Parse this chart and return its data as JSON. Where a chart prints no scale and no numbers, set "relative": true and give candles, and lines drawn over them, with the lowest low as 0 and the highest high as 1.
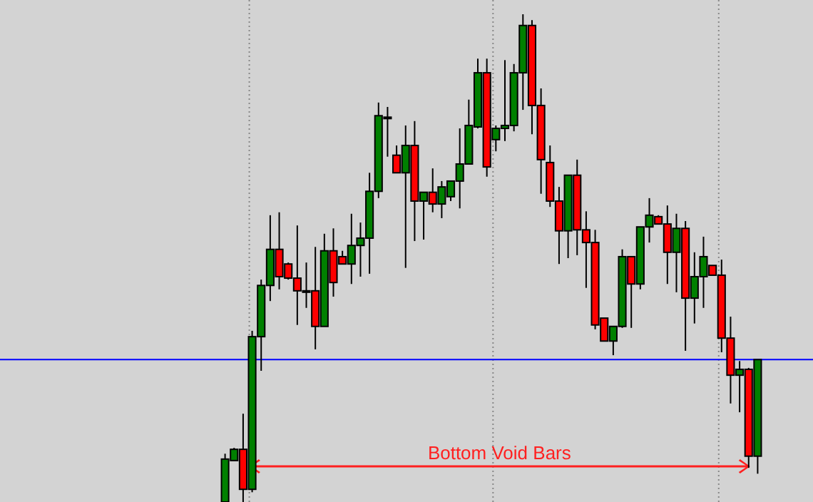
{
  "chart_data": {
    "type": "candlestick",
    "relative": true,
    "categories": [
      null,
      null,
      null,
      null,
      null,
      null,
      null,
      null,
      null,
      null,
      null,
      null,
      null,
      null,
      null,
      null,
      null,
      null,
      null,
      null,
      null,
      null,
      null,
      null,
      null,
      null,
      null,
      null,
      null,
      null,
      null,
      null,
      null,
      null,
      null,
      null,
      null,
      null,
      null,
      null,
      null,
      null,
      null,
      null,
      null,
      null,
      null,
      null,
      null,
      null,
      null,
      null,
      null,
      null,
      null,
      null,
      null,
      null,
      null,
      null
    ],
    "ohlc": [
      [
        0,
        0.099,
        0,
        0.088
      ],
      [
        0.085,
        0.111,
        0.085,
        0.108
      ],
      [
        0.108,
        0.181,
        0,
        0.026
      ],
      [
        0.026,
        0.351,
        0.02,
        0.339
      ],
      [
        0.339,
        0.456,
        0.269,
        0.444
      ],
      [
        0.444,
        0.588,
        0.412,
        0.518
      ],
      [
        0.518,
        0.594,
        0.436,
        0.462
      ],
      [
        0.488,
        0.491,
        0.456,
        0.459
      ],
      [
        0.459,
        0.567,
        0.363,
        0.433
      ],
      [
        0.433,
        0.491,
        0.398,
        0.433
      ],
      [
        0.433,
        0.523,
        0.313,
        0.36
      ],
      [
        0.36,
        0.55,
        0.36,
        0.515
      ],
      [
        0.515,
        0.561,
        0.421,
        0.45
      ],
      [
        0.503,
        0.515,
        0.488,
        0.488
      ],
      [
        0.488,
        0.591,
        0.447,
        0.526
      ],
      [
        0.526,
        0.573,
        0.462,
        0.541
      ],
      [
        0.541,
        0.675,
        0.468,
        0.637
      ],
      [
        0.637,
        0.819,
        0.623,
        0.792
      ],
      [
        0.789,
        0.81,
        0.708,
        0.789
      ],
      [
        0.711,
        0.731,
        0.675,
        0.675
      ],
      [
        0.675,
        0.772,
        0.48,
        0.731
      ],
      [
        0.731,
        0.781,
        0.535,
        0.617
      ],
      [
        0.617,
        0.635,
        0.538,
        0.635
      ],
      [
        0.635,
        0.684,
        0.594,
        0.611
      ],
      [
        0.611,
        0.658,
        0.582,
        0.646
      ],
      [
        0.626,
        0.658,
        0.617,
        0.658
      ],
      [
        0.658,
        0.766,
        0.602,
        0.693
      ],
      [
        0.693,
        0.825,
        0.693,
        0.772
      ],
      [
        0.769,
        0.909,
        0.766,
        0.88
      ],
      [
        0.88,
        0.909,
        0.667,
        0.687
      ],
      [
        0.743,
        0.772,
        0.719,
        0.766
      ],
      [
        0.766,
        0.906,
        0.74,
        0.772
      ],
      [
        0.772,
        0.898,
        0.76,
        0.88
      ],
      [
        0.88,
        1,
        0.804,
        0.977
      ],
      [
        0.977,
        0.988,
        0.754,
        0.813
      ],
      [
        0.813,
        0.848,
        0.632,
        0.702
      ],
      [
        0.696,
        0.731,
        0.605,
        0.617
      ],
      [
        0.617,
        0.646,
        0.488,
        0.556
      ],
      [
        0.556,
        0.67,
        0.5,
        0.67
      ],
      [
        0.67,
        0.702,
        0.506,
        0.558
      ],
      [
        0.558,
        0.596,
        0.439,
        0.532
      ],
      [
        0.532,
        0.558,
        0.354,
        0.363
      ],
      [
        0.377,
        0.377,
        0.33,
        0.33
      ],
      [
        0.33,
        0.36,
        0.301,
        0.36
      ],
      [
        0.36,
        0.518,
        0.357,
        0.503
      ],
      [
        0.503,
        0.503,
        0.357,
        0.447
      ],
      [
        0.447,
        0.564,
        0.436,
        0.564
      ],
      [
        0.564,
        0.623,
        0.532,
        0.588
      ],
      [
        0.585,
        0.588,
        0.57,
        0.57
      ],
      [
        0.57,
        0.608,
        0.447,
        0.512
      ],
      [
        0.512,
        0.591,
        0.43,
        0.561
      ],
      [
        0.561,
        0.576,
        0.31,
        0.418
      ],
      [
        0.418,
        0.512,
        0.366,
        0.462
      ],
      [
        0.462,
        0.544,
        0.398,
        0.503
      ],
      [
        0.485,
        0.485,
        0.465,
        0.465
      ],
      [
        0.465,
        0.497,
        0.307,
        0.336
      ],
      [
        0.336,
        0.38,
        0.202,
        0.26
      ],
      [
        0.26,
        0.289,
        0.184,
        0.272
      ],
      [
        0.272,
        0.275,
        0.07,
        0.094
      ],
      [
        0.094,
        0.292,
        0.058,
        0.292
      ]
    ],
    "ref_lines": [
      {
        "axis": "y",
        "value": 0.292,
        "color": "#0000ff"
      }
    ],
    "annotations": [
      "Bottom Void Bars"
    ]
  }
}
